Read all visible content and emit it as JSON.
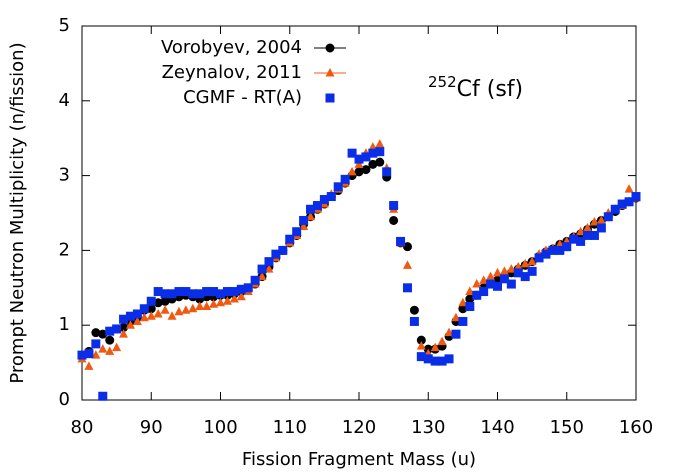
{
  "chart_data": {
    "type": "scatter",
    "xlabel": "Fission Fragment Mass (u)",
    "ylabel": "Prompt Neutron Multiplicity (n/fission)",
    "annotation": {
      "superscript": "252",
      "text": "Cf (sf)"
    },
    "xlim": [
      80,
      160
    ],
    "xticks": [
      80,
      90,
      100,
      110,
      120,
      130,
      140,
      150,
      160
    ],
    "ylim": [
      0,
      5
    ],
    "yticks": [
      0,
      1,
      2,
      3,
      4,
      5
    ],
    "legend": "top-left",
    "x": [
      80,
      81,
      82,
      83,
      84,
      85,
      86,
      87,
      88,
      89,
      90,
      91,
      92,
      93,
      94,
      95,
      96,
      97,
      98,
      99,
      100,
      101,
      102,
      103,
      104,
      105,
      106,
      107,
      108,
      109,
      110,
      111,
      112,
      113,
      114,
      115,
      116,
      117,
      118,
      119,
      120,
      121,
      122,
      123,
      124,
      125,
      126,
      127,
      128,
      129,
      130,
      131,
      132,
      133,
      134,
      135,
      136,
      137,
      138,
      139,
      140,
      141,
      142,
      143,
      144,
      145,
      146,
      147,
      148,
      149,
      150,
      151,
      152,
      153,
      154,
      155,
      156,
      157,
      158,
      159,
      160
    ],
    "series": [
      {
        "name": "Vorobyev, 2004",
        "color": "#000000",
        "marker": "circle",
        "values": [
          0.6,
          0.65,
          0.9,
          0.88,
          0.8,
          0.95,
          0.97,
          1.05,
          1.1,
          1.2,
          1.22,
          1.3,
          1.32,
          1.35,
          1.38,
          1.4,
          1.38,
          1.35,
          1.38,
          1.38,
          1.4,
          1.4,
          1.42,
          1.45,
          1.48,
          1.55,
          1.65,
          1.78,
          1.9,
          2.0,
          2.1,
          2.2,
          2.35,
          2.45,
          2.55,
          2.62,
          2.72,
          2.8,
          2.9,
          3.0,
          3.05,
          3.08,
          3.15,
          3.18,
          2.98,
          2.4,
          2.1,
          2.05,
          1.2,
          0.8,
          0.68,
          0.68,
          0.72,
          0.85,
          1.05,
          1.22,
          1.35,
          1.4,
          1.5,
          1.55,
          1.6,
          1.65,
          1.7,
          1.75,
          1.8,
          1.85,
          1.92,
          1.98,
          2.02,
          2.08,
          2.12,
          2.18,
          2.22,
          2.28,
          2.35,
          2.4,
          2.45,
          2.52,
          2.6,
          2.65,
          2.7
        ]
      },
      {
        "name": "Zeynalov, 2011",
        "color": "#f05a10",
        "marker": "triangle",
        "values": [
          0.55,
          0.45,
          0.6,
          0.68,
          0.65,
          0.7,
          0.88,
          1.0,
          1.05,
          1.1,
          1.12,
          1.15,
          1.2,
          1.12,
          1.18,
          1.2,
          1.22,
          1.25,
          1.25,
          1.28,
          1.3,
          1.32,
          1.35,
          1.38,
          1.45,
          1.55,
          1.65,
          1.75,
          1.9,
          2.0,
          2.1,
          2.2,
          2.32,
          2.45,
          2.55,
          2.62,
          2.75,
          2.82,
          2.9,
          3.05,
          3.15,
          3.3,
          3.38,
          3.42,
          3.1,
          2.55,
          2.1,
          1.8,
          1.05,
          0.72,
          0.62,
          0.7,
          0.78,
          0.9,
          1.1,
          1.3,
          1.45,
          1.55,
          1.6,
          1.65,
          1.7,
          1.72,
          1.75,
          1.78,
          1.82,
          1.85,
          1.95,
          2.0,
          2.02,
          2.08,
          2.12,
          2.18,
          2.25,
          2.3,
          2.38,
          2.4,
          2.5,
          2.55,
          2.6,
          2.82,
          2.7
        ]
      },
      {
        "name": "CGMF - RT(A)",
        "color": "#0a2ee8",
        "marker": "square",
        "values": [
          0.6,
          0.62,
          0.75,
          0.05,
          0.92,
          0.95,
          1.08,
          1.12,
          1.15,
          1.22,
          1.32,
          1.45,
          1.42,
          1.42,
          1.45,
          1.45,
          1.42,
          1.42,
          1.45,
          1.45,
          1.42,
          1.45,
          1.45,
          1.48,
          1.5,
          1.6,
          1.75,
          1.85,
          1.95,
          2.0,
          2.15,
          2.25,
          2.4,
          2.55,
          2.6,
          2.68,
          2.72,
          2.85,
          2.95,
          3.3,
          3.22,
          3.25,
          3.3,
          3.32,
          3.05,
          2.6,
          2.12,
          1.5,
          1.05,
          0.58,
          0.55,
          0.52,
          0.52,
          0.55,
          0.88,
          1.05,
          1.25,
          1.4,
          1.45,
          1.55,
          1.52,
          1.62,
          1.55,
          1.7,
          1.65,
          1.72,
          1.9,
          1.95,
          2.0,
          2.0,
          2.05,
          2.15,
          2.12,
          2.2,
          2.2,
          2.3,
          2.45,
          2.55,
          2.62,
          2.65,
          2.72
        ]
      }
    ]
  }
}
